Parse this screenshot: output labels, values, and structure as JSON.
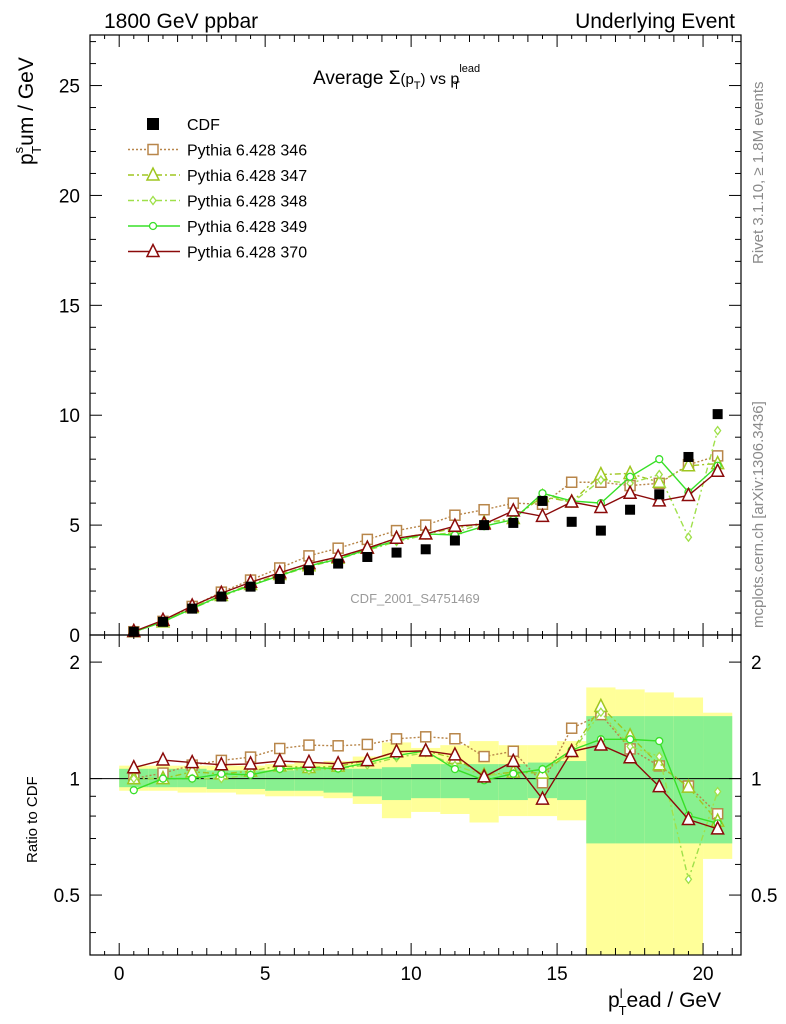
{
  "header": {
    "left": "1800 GeV ppbar",
    "right": "Underlying Event"
  },
  "side_labels": {
    "rivet": "Rivet 3.1.10, ≥ 1.8M events",
    "mcplots": "mcplots.cern.ch [arXiv:1306.3436]"
  },
  "colors": {
    "CDF": "#000000",
    "p346": "#b8864a",
    "p347": "#9fc620",
    "p348": "#9fe04a",
    "p349": "#38e028",
    "p370": "#8b0a0a",
    "band_stat": "#88f090",
    "band_total": "#ffff99"
  },
  "chart_data": {
    "type": "scatter",
    "title": "Average Σ(p_T) vs p_T^lead",
    "title_parts": {
      "main": "Average ",
      "sigma": "Σ",
      "paren_open": "(p",
      "sub_T": "T",
      "paren_close": ")",
      "vs": " vs p",
      "sup_lead": "lead",
      "sub_T2": "T"
    },
    "watermark": "CDF_2001_S4751469",
    "xlabel": {
      "base": "p",
      "sup": "l",
      "sub": "T",
      "rest": "ead / GeV"
    },
    "ylabel": {
      "base": "p",
      "sup": "s",
      "sub": "T",
      "rest": "um / GeV"
    },
    "ratio_ylabel": "Ratio to CDF",
    "xlim": [
      -1,
      21.3
    ],
    "ylim": [
      0,
      27.3
    ],
    "ratio_ylim": [
      0.35,
      2.35
    ],
    "x_ticks": [
      0,
      5,
      10,
      15,
      20
    ],
    "y_ticks": [
      5,
      10,
      15,
      20,
      25
    ],
    "ratio_ticks": [
      0.5,
      1,
      2
    ],
    "x": [
      0.5,
      1.5,
      2.5,
      3.5,
      4.5,
      5.5,
      6.5,
      7.5,
      8.5,
      9.5,
      10.5,
      11.5,
      12.5,
      13.5,
      14.5,
      15.5,
      16.5,
      17.5,
      18.5,
      19.5,
      20.5
    ],
    "data_label": "CDF",
    "data": [
      0.15,
      0.6,
      1.2,
      1.75,
      2.2,
      2.55,
      2.95,
      3.25,
      3.55,
      3.75,
      3.9,
      4.3,
      5.0,
      5.1,
      6.1,
      5.15,
      4.75,
      5.7,
      6.4,
      8.1,
      10.05
    ],
    "series": [
      {
        "name": "Pythia 6.428 346",
        "color_key": "p346",
        "style": "dotted",
        "marker": "square",
        "values": [
          0.15,
          0.62,
          1.3,
          1.95,
          2.5,
          3.05,
          3.6,
          3.95,
          4.35,
          4.75,
          5.0,
          5.45,
          5.7,
          6.0,
          5.95,
          6.95,
          6.95,
          6.8,
          6.9,
          7.75,
          8.15
        ]
      },
      {
        "name": "Pythia 6.428 347",
        "color_key": "p347",
        "style": "dashdot",
        "marker": "triangle",
        "values": [
          0.15,
          0.6,
          1.25,
          1.8,
          2.3,
          2.75,
          3.15,
          3.5,
          3.95,
          4.4,
          4.6,
          4.85,
          5.1,
          5.3,
          6.3,
          6.05,
          7.3,
          7.35,
          6.95,
          7.7,
          7.8
        ]
      },
      {
        "name": "Pythia 6.428 348",
        "color_key": "p348",
        "style": "dashdot",
        "marker": "diamond",
        "values": [
          0.15,
          0.6,
          1.2,
          1.75,
          2.25,
          2.7,
          3.1,
          3.45,
          3.85,
          4.25,
          4.55,
          4.65,
          5.1,
          5.25,
          6.45,
          6.0,
          7.05,
          6.9,
          7.3,
          4.45,
          9.3
        ]
      },
      {
        "name": "Pythia 6.428 349",
        "color_key": "p349",
        "style": "solid",
        "marker": "circle",
        "values": [
          0.14,
          0.6,
          1.2,
          1.8,
          2.25,
          2.7,
          3.15,
          3.45,
          3.9,
          4.3,
          4.6,
          4.55,
          4.95,
          5.25,
          6.45,
          6.1,
          6.0,
          7.2,
          8.0,
          6.5,
          7.7
        ]
      },
      {
        "name": "Pythia 6.428 370",
        "color_key": "p370",
        "style": "solid",
        "marker": "triangle",
        "values": [
          0.16,
          0.67,
          1.32,
          1.9,
          2.4,
          2.83,
          3.25,
          3.55,
          3.95,
          4.4,
          4.6,
          4.95,
          5.05,
          5.65,
          5.4,
          6.05,
          5.8,
          6.45,
          6.1,
          6.35,
          7.45
        ]
      }
    ],
    "band_upper": {
      "stat": [
        1.06,
        1.06,
        1.06,
        1.05,
        1.05,
        1.05,
        1.06,
        1.06,
        1.06,
        1.07,
        1.09,
        1.09,
        1.09,
        1.09,
        1.1,
        1.11,
        1.45,
        1.45,
        1.45,
        1.45,
        1.45
      ],
      "total": [
        1.08,
        1.08,
        1.08,
        1.08,
        1.08,
        1.09,
        1.1,
        1.11,
        1.14,
        1.24,
        1.2,
        1.22,
        1.25,
        1.22,
        1.22,
        1.25,
        1.72,
        1.7,
        1.67,
        1.62,
        1.48
      ]
    },
    "band_lower": {
      "stat": [
        0.95,
        0.95,
        0.95,
        0.94,
        0.94,
        0.93,
        0.93,
        0.92,
        0.9,
        0.88,
        0.89,
        0.89,
        0.88,
        0.88,
        0.89,
        0.88,
        0.68,
        0.68,
        0.68,
        0.68,
        0.68
      ],
      "total": [
        0.93,
        0.93,
        0.92,
        0.92,
        0.91,
        0.9,
        0.9,
        0.89,
        0.86,
        0.79,
        0.82,
        0.81,
        0.77,
        0.8,
        0.8,
        0.78,
        0.34,
        0.34,
        0.34,
        0.34,
        0.62
      ]
    }
  }
}
